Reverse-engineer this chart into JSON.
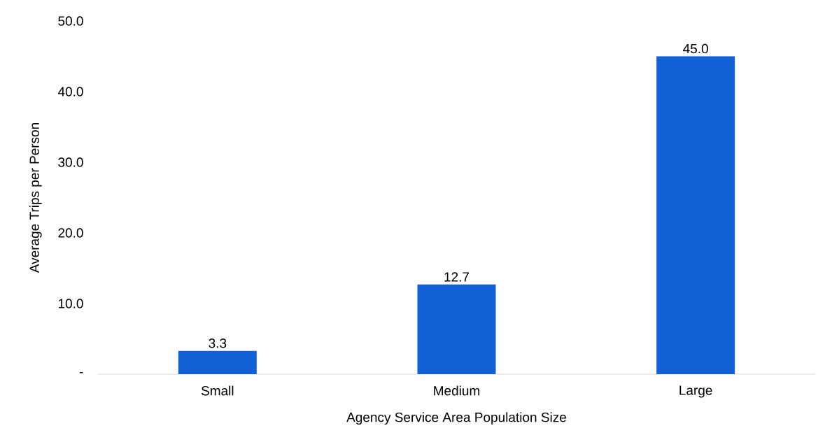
{
  "chart_data": {
    "type": "bar",
    "xlabel": "Agency Service Area Population Size",
    "ylabel": "Average Trips per Person",
    "categories": [
      "Small",
      "Medium",
      "Large"
    ],
    "values": [
      3.3,
      12.7,
      45.0
    ],
    "value_labels": [
      "3.3",
      "12.7",
      "45.0"
    ],
    "color": "#1160d6",
    "ylim": [
      0,
      50
    ],
    "yticks": [
      {
        "value": 0,
        "label": "-"
      },
      {
        "value": 10,
        "label": "10.0"
      },
      {
        "value": 20,
        "label": "20.0"
      },
      {
        "value": 30,
        "label": "30.0"
      },
      {
        "value": 40,
        "label": "40.0"
      },
      {
        "value": 50,
        "label": "50.0"
      }
    ],
    "grid": false
  }
}
